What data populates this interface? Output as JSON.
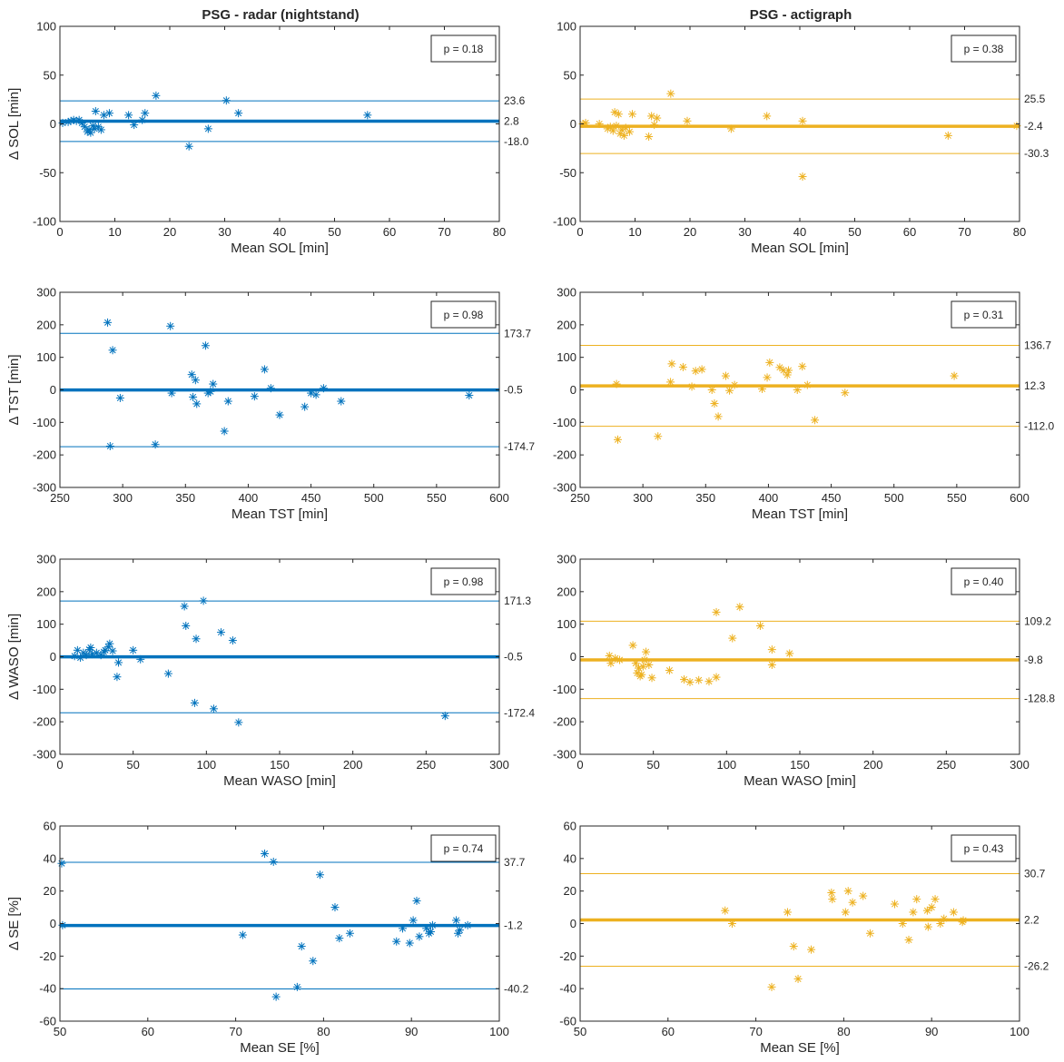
{
  "figure": {
    "column_titles": [
      "PSG - radar (nightstand)",
      "PSG - actigraph"
    ],
    "colors": {
      "radar": "#0072BD",
      "actigraph": "#EDB120",
      "axis": "#262626"
    }
  },
  "chart_data": [
    {
      "type": "scatter",
      "id": "radar-sol",
      "row": 0,
      "col": 0,
      "color": "#0072BD",
      "xlabel": "Mean SOL [min]",
      "ylabel": "Δ SOL [min]",
      "xlim": [
        0,
        80
      ],
      "ylim": [
        -100,
        100
      ],
      "xticks": [
        0,
        10,
        20,
        30,
        40,
        50,
        60,
        70,
        80
      ],
      "yticks": [
        -100,
        -50,
        0,
        50,
        100
      ],
      "mean_line": 2.8,
      "loa_upper": 23.6,
      "loa_lower": -18.0,
      "mean_label": "2.8",
      "upper_label": "23.6",
      "lower_label": "-18.0",
      "p_label": "p = 0.18",
      "points": [
        [
          0.5,
          1
        ],
        [
          1.5,
          2
        ],
        [
          2,
          3
        ],
        [
          2.5,
          4
        ],
        [
          3,
          3
        ],
        [
          3.5,
          4
        ],
        [
          4,
          1
        ],
        [
          4.5,
          -3
        ],
        [
          5,
          -8
        ],
        [
          5.3,
          -6
        ],
        [
          5.6,
          -9
        ],
        [
          6,
          -2
        ],
        [
          6.3,
          -5
        ],
        [
          6.5,
          13
        ],
        [
          7,
          -3
        ],
        [
          7.5,
          -6
        ],
        [
          8,
          9
        ],
        [
          9,
          11
        ],
        [
          12.5,
          9
        ],
        [
          13.5,
          -1
        ],
        [
          15,
          4
        ],
        [
          15.5,
          11
        ],
        [
          17.5,
          29
        ],
        [
          23.5,
          -23
        ],
        [
          27,
          -5
        ],
        [
          30.3,
          24
        ],
        [
          32.5,
          11
        ],
        [
          56,
          9
        ]
      ]
    },
    {
      "type": "scatter",
      "id": "actigraph-sol",
      "row": 0,
      "col": 1,
      "color": "#EDB120",
      "xlabel": "Mean SOL [min]",
      "ylabel": "",
      "xlim": [
        0,
        80
      ],
      "ylim": [
        -100,
        100
      ],
      "xticks": [
        0,
        10,
        20,
        30,
        40,
        50,
        60,
        70,
        80
      ],
      "yticks": [
        -100,
        -50,
        0,
        50,
        100
      ],
      "mean_line": -2.4,
      "loa_upper": 25.5,
      "loa_lower": -30.3,
      "mean_label": "-2.4",
      "upper_label": "25.5",
      "lower_label": "-30.3",
      "p_label": "p = 0.38",
      "points": [
        [
          0.5,
          0
        ],
        [
          1,
          1
        ],
        [
          3.5,
          0
        ],
        [
          5,
          -5
        ],
        [
          5.5,
          -3
        ],
        [
          6,
          -7
        ],
        [
          6.3,
          12
        ],
        [
          6.6,
          -2
        ],
        [
          7,
          10
        ],
        [
          7.3,
          -10
        ],
        [
          7.6,
          -6
        ],
        [
          8,
          -12
        ],
        [
          8.3,
          -4
        ],
        [
          9,
          -8
        ],
        [
          9.5,
          10
        ],
        [
          12.5,
          -13
        ],
        [
          13,
          8
        ],
        [
          13.5,
          -1
        ],
        [
          14,
          6
        ],
        [
          16.5,
          31
        ],
        [
          19.5,
          3
        ],
        [
          27.5,
          -5
        ],
        [
          34,
          8
        ],
        [
          40.5,
          -54
        ],
        [
          40.5,
          3
        ],
        [
          67,
          -12
        ],
        [
          79.5,
          -2
        ]
      ]
    },
    {
      "type": "scatter",
      "id": "radar-tst",
      "row": 1,
      "col": 0,
      "color": "#0072BD",
      "xlabel": "Mean TST [min]",
      "ylabel": "Δ TST [min]",
      "xlim": [
        250,
        600
      ],
      "ylim": [
        -300,
        300
      ],
      "xticks": [
        250,
        300,
        350,
        400,
        450,
        500,
        550,
        600
      ],
      "yticks": [
        -300,
        -200,
        -100,
        0,
        100,
        200,
        300
      ],
      "mean_line": -0.5,
      "loa_upper": 173.7,
      "loa_lower": -174.7,
      "mean_label": "-0.5",
      "upper_label": "173.7",
      "lower_label": "-174.7",
      "p_label": "p = 0.98",
      "points": [
        [
          288,
          207
        ],
        [
          290,
          -173
        ],
        [
          292,
          122
        ],
        [
          298,
          -25
        ],
        [
          326,
          -168
        ],
        [
          338,
          196
        ],
        [
          339,
          -10
        ],
        [
          355,
          47
        ],
        [
          356,
          -22
        ],
        [
          358,
          30
        ],
        [
          359,
          -43
        ],
        [
          366,
          136
        ],
        [
          368,
          -10
        ],
        [
          370,
          -5
        ],
        [
          372,
          18
        ],
        [
          381,
          -127
        ],
        [
          384,
          -35
        ],
        [
          405,
          -20
        ],
        [
          413,
          63
        ],
        [
          418,
          5
        ],
        [
          425,
          -77
        ],
        [
          445,
          -52
        ],
        [
          450,
          -10
        ],
        [
          454,
          -15
        ],
        [
          460,
          5
        ],
        [
          474,
          -35
        ],
        [
          576,
          -17
        ]
      ]
    },
    {
      "type": "scatter",
      "id": "actigraph-tst",
      "row": 1,
      "col": 1,
      "color": "#EDB120",
      "xlabel": "Mean TST [min]",
      "ylabel": "",
      "xlim": [
        250,
        600
      ],
      "ylim": [
        -300,
        300
      ],
      "xticks": [
        250,
        300,
        350,
        400,
        450,
        500,
        550,
        600
      ],
      "yticks": [
        -300,
        -200,
        -100,
        0,
        100,
        200,
        300
      ],
      "mean_line": 12.3,
      "loa_upper": 136.7,
      "loa_lower": -112.0,
      "mean_label": "12.3",
      "upper_label": "136.7",
      "lower_label": "-112.0",
      "p_label": "p = 0.31",
      "points": [
        [
          279,
          18
        ],
        [
          280,
          -153
        ],
        [
          312,
          -143
        ],
        [
          322,
          24
        ],
        [
          323,
          80
        ],
        [
          332,
          70
        ],
        [
          339,
          10
        ],
        [
          342,
          58
        ],
        [
          347,
          63
        ],
        [
          355,
          0
        ],
        [
          357,
          -42
        ],
        [
          360,
          -82
        ],
        [
          366,
          43
        ],
        [
          369,
          -2
        ],
        [
          373,
          15
        ],
        [
          395,
          3
        ],
        [
          399,
          38
        ],
        [
          401,
          84
        ],
        [
          409,
          69
        ],
        [
          412,
          60
        ],
        [
          415,
          46
        ],
        [
          416,
          60
        ],
        [
          423,
          0
        ],
        [
          427,
          72
        ],
        [
          431,
          15
        ],
        [
          437,
          -93
        ],
        [
          461,
          -9
        ],
        [
          548,
          43
        ]
      ]
    },
    {
      "type": "scatter",
      "id": "radar-waso",
      "row": 2,
      "col": 0,
      "color": "#0072BD",
      "xlabel": "Mean WASO [min]",
      "ylabel": "Δ WASO [min]",
      "xlim": [
        0,
        300
      ],
      "ylim": [
        -300,
        300
      ],
      "xticks": [
        0,
        50,
        100,
        150,
        200,
        250,
        300
      ],
      "yticks": [
        -300,
        -200,
        -100,
        0,
        100,
        200,
        300
      ],
      "mean_line": -0.5,
      "loa_upper": 171.3,
      "loa_lower": -172.4,
      "mean_label": "-0.5",
      "upper_label": "171.3",
      "lower_label": "-172.4",
      "p_label": "p = 0.98",
      "points": [
        [
          10,
          2
        ],
        [
          12,
          20
        ],
        [
          14,
          -3
        ],
        [
          16,
          12
        ],
        [
          18,
          5
        ],
        [
          20,
          22
        ],
        [
          21,
          28
        ],
        [
          22,
          8
        ],
        [
          25,
          12
        ],
        [
          28,
          5
        ],
        [
          30,
          15
        ],
        [
          31,
          20
        ],
        [
          33,
          30
        ],
        [
          34,
          40
        ],
        [
          36,
          18
        ],
        [
          39,
          -62
        ],
        [
          40,
          -18
        ],
        [
          50,
          20
        ],
        [
          55,
          -8
        ],
        [
          74,
          -52
        ],
        [
          85,
          155
        ],
        [
          86,
          95
        ],
        [
          92,
          -142
        ],
        [
          93,
          55
        ],
        [
          98,
          172
        ],
        [
          105,
          -160
        ],
        [
          110,
          75
        ],
        [
          118,
          50
        ],
        [
          122,
          -202
        ],
        [
          263,
          -182
        ]
      ]
    },
    {
      "type": "scatter",
      "id": "actigraph-waso",
      "row": 2,
      "col": 1,
      "color": "#EDB120",
      "xlabel": "Mean WASO [min]",
      "ylabel": "",
      "xlim": [
        0,
        300
      ],
      "ylim": [
        -300,
        300
      ],
      "xticks": [
        0,
        50,
        100,
        150,
        200,
        250,
        300
      ],
      "yticks": [
        -300,
        -200,
        -100,
        0,
        100,
        200,
        300
      ],
      "mean_line": -9.8,
      "loa_upper": 109.2,
      "loa_lower": -128.8,
      "mean_label": "-9.8",
      "upper_label": "109.2",
      "lower_label": "-128.8",
      "p_label": "p = 0.40",
      "points": [
        [
          20,
          3
        ],
        [
          21,
          -20
        ],
        [
          24,
          -5
        ],
        [
          27,
          -10
        ],
        [
          36,
          35
        ],
        [
          38,
          -20
        ],
        [
          39,
          -50
        ],
        [
          40,
          -35
        ],
        [
          41,
          -60
        ],
        [
          42,
          -55
        ],
        [
          43,
          -30
        ],
        [
          44,
          -10
        ],
        [
          45,
          15
        ],
        [
          47,
          -25
        ],
        [
          49,
          -65
        ],
        [
          61,
          -42
        ],
        [
          71,
          -70
        ],
        [
          75,
          -78
        ],
        [
          81,
          -72
        ],
        [
          88,
          -76
        ],
        [
          93,
          -63
        ],
        [
          93,
          137
        ],
        [
          104,
          57
        ],
        [
          109,
          153
        ],
        [
          123,
          95
        ],
        [
          131,
          22
        ],
        [
          131,
          -25
        ],
        [
          143,
          10
        ]
      ]
    },
    {
      "type": "scatter",
      "id": "radar-se",
      "row": 3,
      "col": 0,
      "color": "#0072BD",
      "xlabel": "Mean SE [%]",
      "ylabel": "Δ SE [%]",
      "xlim": [
        50,
        100
      ],
      "ylim": [
        -60,
        60
      ],
      "xticks": [
        50,
        60,
        70,
        80,
        90,
        100
      ],
      "yticks": [
        -60,
        -40,
        -20,
        0,
        20,
        40,
        60
      ],
      "mean_line": -1.2,
      "loa_upper": 37.7,
      "loa_lower": -40.2,
      "mean_label": "-1.2",
      "upper_label": "37.7",
      "lower_label": "-40.2",
      "p_label": "p = 0.74",
      "points": [
        [
          50.2,
          37
        ],
        [
          50.3,
          -1
        ],
        [
          70.8,
          -7
        ],
        [
          73.3,
          43
        ],
        [
          74.3,
          38
        ],
        [
          74.6,
          -45
        ],
        [
          77,
          -39
        ],
        [
          77.5,
          -14
        ],
        [
          78.8,
          -23
        ],
        [
          79.6,
          30
        ],
        [
          81.3,
          10
        ],
        [
          81.8,
          -9
        ],
        [
          83,
          -6
        ],
        [
          88.3,
          -11
        ],
        [
          89,
          -3
        ],
        [
          89.8,
          -12
        ],
        [
          90.2,
          2
        ],
        [
          90.6,
          14
        ],
        [
          90.9,
          -8
        ],
        [
          91.7,
          -3
        ],
        [
          92,
          -6
        ],
        [
          92.2,
          -5
        ],
        [
          92.4,
          -1
        ],
        [
          95.1,
          2
        ],
        [
          95.3,
          -6
        ],
        [
          95.5,
          -4
        ],
        [
          96.4,
          -1
        ]
      ]
    },
    {
      "type": "scatter",
      "id": "actigraph-se",
      "row": 3,
      "col": 1,
      "color": "#EDB120",
      "xlabel": "Mean SE [%]",
      "ylabel": "",
      "xlim": [
        50,
        100
      ],
      "ylim": [
        -60,
        60
      ],
      "xticks": [
        50,
        60,
        70,
        80,
        90,
        100
      ],
      "yticks": [
        -60,
        -40,
        -20,
        0,
        20,
        40,
        60
      ],
      "mean_line": 2.2,
      "loa_upper": 30.7,
      "loa_lower": -26.2,
      "mean_label": "2.2",
      "upper_label": "30.7",
      "lower_label": "-26.2",
      "p_label": "p = 0.43",
      "points": [
        [
          66.5,
          8
        ],
        [
          67.3,
          0
        ],
        [
          71.8,
          -39
        ],
        [
          73.6,
          7
        ],
        [
          74.3,
          -14
        ],
        [
          74.8,
          -34
        ],
        [
          76.3,
          -16
        ],
        [
          78.6,
          19
        ],
        [
          78.7,
          15
        ],
        [
          80.2,
          7
        ],
        [
          80.5,
          20
        ],
        [
          81,
          13
        ],
        [
          82.2,
          17
        ],
        [
          83,
          -6
        ],
        [
          85.8,
          12
        ],
        [
          86.7,
          0
        ],
        [
          87.4,
          -10
        ],
        [
          87.9,
          7
        ],
        [
          88.3,
          15
        ],
        [
          89.5,
          8
        ],
        [
          89.6,
          -2
        ],
        [
          90,
          10
        ],
        [
          90.4,
          15
        ],
        [
          91,
          0
        ],
        [
          91.4,
          3
        ],
        [
          92.5,
          7
        ],
        [
          93.5,
          1
        ],
        [
          93.6,
          2
        ]
      ]
    }
  ]
}
